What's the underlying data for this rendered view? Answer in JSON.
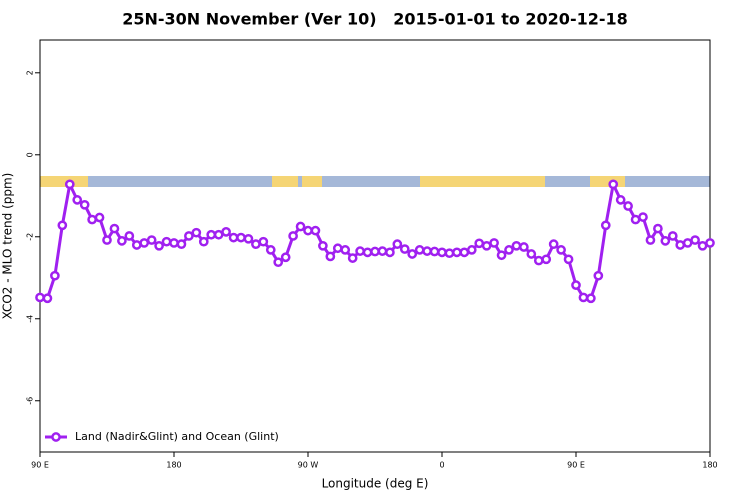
{
  "chart_data": {
    "type": "line",
    "title": "25N-30N November (Ver 10)   2015-01-01 to 2020-12-18",
    "x_label": "Longitude (deg E)",
    "y_label": "XCO2 - MLO trend (ppm)",
    "x": [
      90,
      95,
      100,
      105,
      110,
      115,
      120,
      125,
      130,
      135,
      140,
      145,
      150,
      155,
      160,
      165,
      170,
      175,
      180,
      185,
      190,
      195,
      200,
      205,
      210,
      215,
      220,
      225,
      230,
      235,
      240,
      245,
      250,
      255,
      260,
      265,
      270,
      275,
      280,
      285,
      290,
      295,
      300,
      305,
      310,
      315,
      320,
      325,
      330,
      335,
      340,
      345,
      350,
      355,
      360,
      365,
      370,
      375,
      380,
      385,
      390,
      395,
      400,
      405,
      410,
      415,
      420,
      425,
      430,
      435,
      440,
      445,
      450,
      455,
      460,
      465,
      470,
      475,
      480,
      485,
      490,
      495,
      500,
      505,
      510,
      515,
      520,
      525,
      530,
      535,
      540
    ],
    "series": [
      {
        "name": "Land (Nadir&Glint) and Ocean (Glint)",
        "color": "#a020f0",
        "values": [
          -3.48,
          -3.5,
          -2.95,
          -1.72,
          -0.72,
          -1.1,
          -1.22,
          -1.58,
          -1.53,
          -2.08,
          -1.8,
          -2.1,
          -1.98,
          -2.2,
          -2.15,
          -2.08,
          -2.22,
          -2.12,
          -2.15,
          -2.18,
          -1.98,
          -1.9,
          -2.12,
          -1.95,
          -1.95,
          -1.88,
          -2.02,
          -2.02,
          -2.05,
          -2.18,
          -2.12,
          -2.32,
          -2.62,
          -2.5,
          -1.98,
          -1.75,
          -1.85,
          -1.85,
          -2.22,
          -2.48,
          -2.28,
          -2.32,
          -2.52,
          -2.35,
          -2.38,
          -2.36,
          -2.35,
          -2.38,
          -2.18,
          -2.3,
          -2.42,
          -2.32,
          -2.35,
          -2.36,
          -2.38,
          -2.4,
          -2.38,
          -2.38,
          -2.32,
          -2.16,
          -2.22,
          -2.15,
          -2.45,
          -2.32,
          -2.22,
          -2.25,
          -2.42,
          -2.58,
          -2.55,
          -2.18,
          -2.32,
          -2.55,
          -3.18,
          -3.48,
          -3.5,
          -2.95,
          -1.72,
          -0.72,
          -1.1,
          -1.25,
          -1.58,
          -1.52,
          -2.08,
          -1.8,
          -2.1,
          -1.98,
          -2.2,
          -2.15,
          -2.08,
          -2.22,
          -2.15
        ]
      }
    ],
    "xlim": [
      90,
      540
    ],
    "xticks": [
      {
        "value": 90,
        "label": "90 E"
      },
      180,
      {
        "value": 270,
        "label": "90 W"
      },
      {
        "value": 360,
        "label": "0"
      },
      {
        "value": 450,
        "label": "90 E"
      },
      {
        "value": 540,
        "label": "180"
      }
    ],
    "ylim": [
      -7.25,
      2.8
    ],
    "yticks": [
      2,
      0,
      -2,
      -4,
      -6
    ],
    "legend": "bottom-left"
  }
}
